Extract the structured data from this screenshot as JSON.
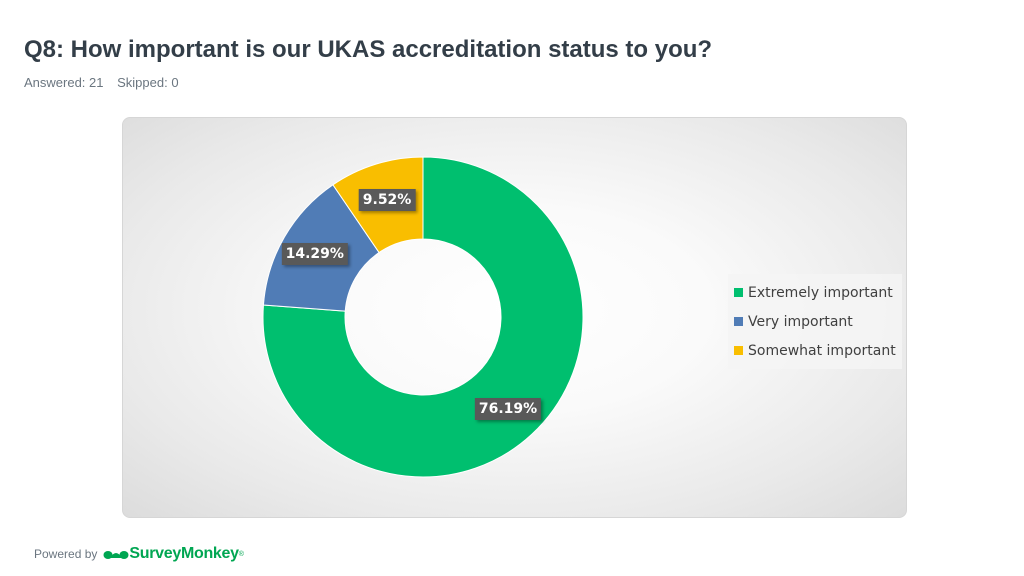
{
  "header": {
    "title": "Q8: How important is our UKAS accreditation status to you?",
    "answered": "Answered: 21",
    "skipped": "Skipped: 0"
  },
  "chart_data": {
    "type": "pie",
    "style": "donut",
    "categories": [
      "Extremely important",
      "Very important",
      "Somewhat important"
    ],
    "values": [
      76.19,
      14.29,
      9.52
    ],
    "labels": [
      "76.19%",
      "14.29%",
      "9.52%"
    ],
    "colors": [
      "#00bf6f",
      "#507cb6",
      "#f9be00"
    ],
    "legend_position": "right"
  },
  "footer": {
    "powered_by": "Powered by",
    "brand": "SurveyMonkey",
    "brand_mark": "®"
  }
}
